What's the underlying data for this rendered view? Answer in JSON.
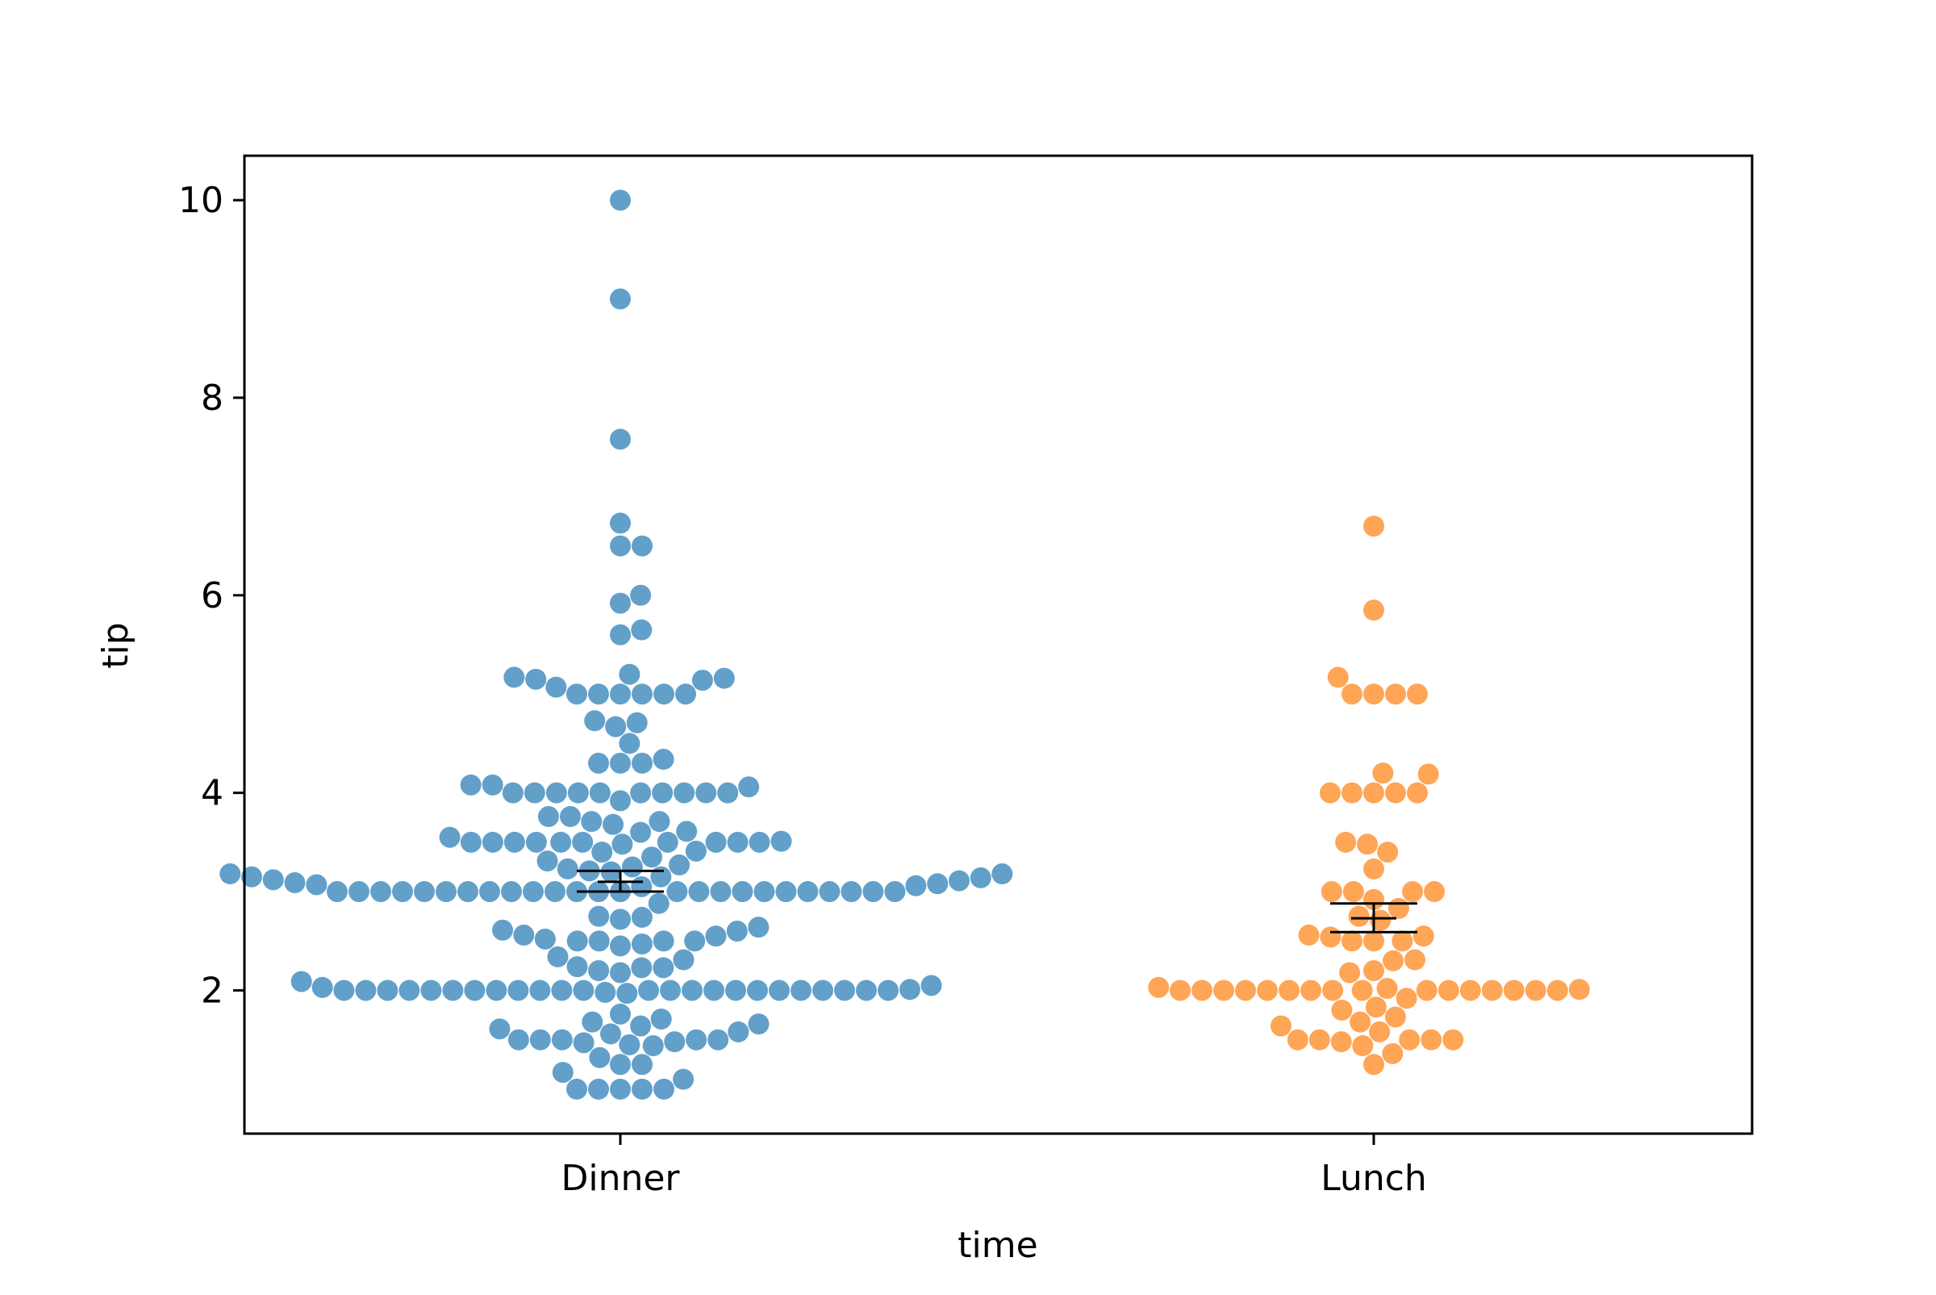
{
  "chart_data": {
    "type": "scatter",
    "subtype": "swarm",
    "title": "",
    "xlabel": "time",
    "ylabel": "tip",
    "categories": [
      "Dinner",
      "Lunch"
    ],
    "ylim": [
      0.55,
      10.45
    ],
    "yticks": [
      2,
      4,
      6,
      8,
      10
    ],
    "grid": false,
    "legend": "none",
    "series": [
      {
        "category": "Dinner",
        "color": "#1f77b4",
        "values": [
          10.0,
          9.0,
          7.58,
          6.73,
          6.5,
          6.5,
          6.0,
          5.92,
          5.65,
          5.6,
          5.2,
          5.17,
          5.16,
          5.15,
          5.14,
          5.07,
          5.0,
          5.0,
          5.0,
          5.0,
          5.0,
          5.0,
          4.73,
          4.71,
          4.67,
          4.5,
          4.34,
          4.3,
          4.3,
          4.3,
          4.08,
          4.08,
          4.06,
          4.0,
          4.0,
          4.0,
          4.0,
          4.0,
          4.0,
          4.0,
          4.0,
          4.0,
          4.0,
          3.92,
          3.76,
          3.76,
          3.71,
          3.71,
          3.68,
          3.61,
          3.6,
          3.55,
          3.51,
          3.5,
          3.5,
          3.5,
          3.5,
          3.5,
          3.5,
          3.5,
          3.5,
          3.5,
          3.5,
          3.48,
          3.41,
          3.4,
          3.35,
          3.31,
          3.27,
          3.25,
          3.23,
          3.21,
          3.2,
          3.18,
          3.18,
          3.15,
          3.15,
          3.14,
          3.12,
          3.11,
          3.09,
          3.08,
          3.07,
          3.06,
          3.05,
          3.0,
          3.0,
          3.0,
          3.0,
          3.0,
          3.0,
          3.0,
          3.0,
          3.0,
          3.0,
          3.0,
          3.0,
          3.0,
          3.0,
          3.0,
          3.0,
          3.0,
          3.0,
          3.0,
          3.0,
          3.0,
          3.0,
          3.0,
          3.0,
          3.0,
          2.88,
          2.75,
          2.74,
          2.72,
          2.64,
          2.61,
          2.6,
          2.56,
          2.55,
          2.52,
          2.5,
          2.5,
          2.5,
          2.5,
          2.47,
          2.45,
          2.34,
          2.31,
          2.24,
          2.23,
          2.23,
          2.2,
          2.18,
          2.09,
          2.05,
          2.03,
          2.01,
          2.0,
          2.0,
          2.0,
          2.0,
          2.0,
          2.0,
          2.0,
          2.0,
          2.0,
          2.0,
          2.0,
          2.0,
          2.0,
          2.0,
          2.0,
          2.0,
          2.0,
          2.0,
          2.0,
          2.0,
          2.0,
          2.0,
          2.0,
          2.0,
          1.98,
          1.97,
          1.76,
          1.71,
          1.68,
          1.66,
          1.64,
          1.61,
          1.58,
          1.56,
          1.5,
          1.5,
          1.5,
          1.5,
          1.5,
          1.48,
          1.47,
          1.45,
          1.44,
          1.32,
          1.25,
          1.25,
          1.17,
          1.1,
          1.0,
          1.0,
          1.0,
          1.0,
          1.0
        ],
        "mean": 3.1,
        "ci": [
          3.0,
          3.21
        ]
      },
      {
        "category": "Lunch",
        "color": "#ff7f0e",
        "values": [
          6.7,
          5.85,
          5.17,
          5.0,
          5.0,
          5.0,
          5.0,
          4.2,
          4.19,
          4.0,
          4.0,
          4.0,
          4.0,
          4.0,
          3.5,
          3.48,
          3.4,
          3.23,
          3.0,
          3.0,
          3.0,
          3.0,
          2.92,
          2.83,
          2.75,
          2.71,
          2.56,
          2.55,
          2.54,
          2.5,
          2.5,
          2.5,
          2.31,
          2.3,
          2.2,
          2.18,
          2.03,
          2.02,
          2.01,
          2.0,
          2.0,
          2.0,
          2.0,
          2.0,
          2.0,
          2.0,
          2.0,
          2.0,
          2.0,
          2.0,
          2.0,
          2.0,
          2.0,
          2.0,
          2.0,
          1.92,
          1.83,
          1.8,
          1.73,
          1.68,
          1.64,
          1.58,
          1.5,
          1.5,
          1.5,
          1.5,
          1.5,
          1.48,
          1.44,
          1.36,
          1.25
        ],
        "mean": 2.73,
        "ci": [
          2.59,
          2.88
        ]
      }
    ]
  }
}
